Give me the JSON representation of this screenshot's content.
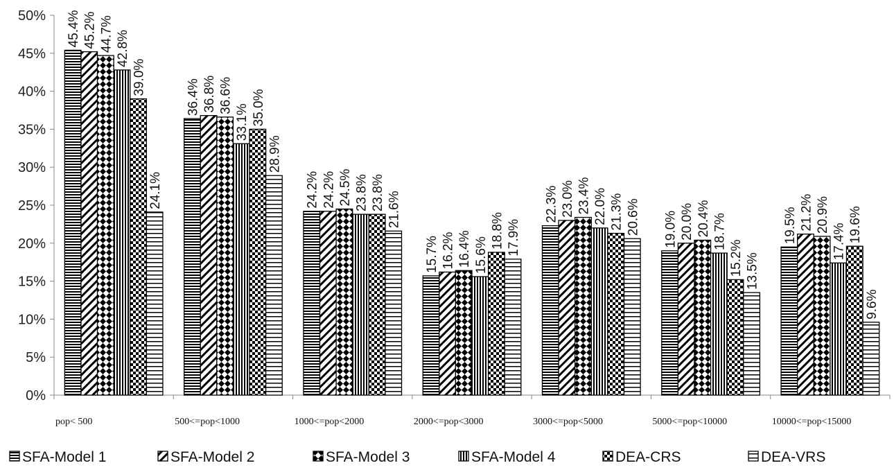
{
  "chart_data": {
    "type": "bar",
    "title": "",
    "xlabel": "",
    "ylabel": "",
    "ylim": [
      0,
      50
    ],
    "y_ticks": [
      "0%",
      "5%",
      "10%",
      "15%",
      "20%",
      "25%",
      "30%",
      "35%",
      "40%",
      "45%",
      "50%"
    ],
    "grid": false,
    "legend_position": "bottom",
    "categories": [
      "pop< 500",
      "500<=pop<1000",
      "1000<=pop<2000",
      "2000<=pop<3000",
      "3000<=pop<5000",
      "5000<=pop<10000",
      "10000<=pop<15000"
    ],
    "series": [
      {
        "name": "SFA-Model 1",
        "pattern": "horizontal-lines",
        "values": [
          45.4,
          36.4,
          24.2,
          15.7,
          22.3,
          19.0,
          19.5
        ],
        "labels": [
          "45.4%",
          "36.4%",
          "24.2%",
          "15.7%",
          "22.3%",
          "19.0%",
          "19.5%"
        ]
      },
      {
        "name": "SFA-Model 2",
        "pattern": "diagonal-lines",
        "values": [
          45.2,
          36.8,
          24.2,
          16.2,
          23.0,
          20.0,
          21.2
        ],
        "labels": [
          "45.2%",
          "36.8%",
          "24.2%",
          "16.2%",
          "23.0%",
          "20.0%",
          "21.2%"
        ]
      },
      {
        "name": "SFA-Model 3",
        "pattern": "diamonds",
        "values": [
          44.7,
          36.6,
          24.5,
          16.4,
          23.4,
          20.4,
          20.9
        ],
        "labels": [
          "44.7%",
          "36.6%",
          "24.5%",
          "16.4%",
          "23.4%",
          "20.4%",
          "20.9%"
        ]
      },
      {
        "name": "SFA-Model 4",
        "pattern": "vertical-lines",
        "values": [
          42.8,
          33.1,
          23.8,
          15.6,
          22.0,
          18.7,
          17.4
        ],
        "labels": [
          "42.8%",
          "33.1%",
          "23.8%",
          "15.6%",
          "22.0%",
          "18.7%",
          "17.4%"
        ]
      },
      {
        "name": "DEA-CRS",
        "pattern": "checker",
        "values": [
          39.0,
          35.0,
          23.8,
          18.8,
          21.3,
          15.2,
          19.6
        ],
        "labels": [
          "39.0%",
          "35.0%",
          "23.8%",
          "18.8%",
          "21.3%",
          "15.2%",
          "19.6%"
        ]
      },
      {
        "name": "DEA-VRS",
        "pattern": "wide-horizontal-lines",
        "values": [
          24.1,
          28.9,
          21.6,
          17.9,
          20.6,
          13.5,
          9.6
        ],
        "labels": [
          "24.1%",
          "28.9%",
          "21.6%",
          "17.9%",
          "20.6%",
          "13.5%",
          "9.6%"
        ]
      }
    ]
  }
}
